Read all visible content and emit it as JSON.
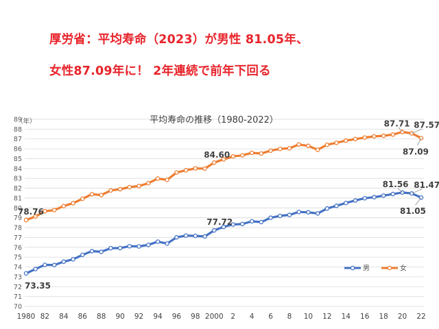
{
  "headline": {
    "line1": "厚労省：平均寿命（2023）が男性 81.05年、",
    "line2": "女性87.09年に！ 2年連続で前年下回る",
    "color": "#e8242b"
  },
  "chart_data": {
    "type": "line",
    "title": "平均寿命の推移（1980-2022）",
    "yunit": "（年）",
    "ylim": [
      70,
      89
    ],
    "y_ticks": [
      70,
      71,
      72,
      73,
      74,
      75,
      76,
      77,
      78,
      79,
      80,
      81,
      82,
      83,
      84,
      85,
      86,
      87,
      88,
      89
    ],
    "x_tick_labels": [
      "1980",
      "82",
      "84",
      "86",
      "88",
      "90",
      "92",
      "94",
      "96",
      "98",
      "2000",
      "2",
      "4",
      "6",
      "8",
      "10",
      "12",
      "14",
      "16",
      "18",
      "20",
      "22"
    ],
    "grid": true,
    "legend_position": "bottom-right",
    "x": [
      1980,
      1981,
      1982,
      1983,
      1984,
      1985,
      1986,
      1987,
      1988,
      1989,
      1990,
      1991,
      1992,
      1993,
      1994,
      1995,
      1996,
      1997,
      1998,
      1999,
      2000,
      2001,
      2002,
      2003,
      2004,
      2005,
      2006,
      2007,
      2008,
      2009,
      2010,
      2011,
      2012,
      2013,
      2014,
      2015,
      2016,
      2017,
      2018,
      2019,
      2020,
      2021,
      2022
    ],
    "series": [
      {
        "name": "男",
        "color": "#4472c4",
        "values": [
          73.35,
          73.79,
          74.22,
          74.2,
          74.54,
          74.78,
          75.23,
          75.61,
          75.54,
          75.91,
          75.92,
          76.11,
          76.09,
          76.25,
          76.57,
          76.38,
          77.01,
          77.19,
          77.16,
          77.1,
          77.72,
          78.07,
          78.32,
          78.36,
          78.64,
          78.56,
          79.0,
          79.19,
          79.29,
          79.59,
          79.55,
          79.44,
          79.94,
          80.21,
          80.5,
          80.75,
          80.98,
          81.09,
          81.25,
          81.41,
          81.56,
          81.47,
          81.05
        ]
      },
      {
        "name": "女",
        "color": "#ed7d31",
        "values": [
          78.76,
          79.13,
          79.66,
          79.78,
          80.18,
          80.48,
          80.93,
          81.39,
          81.3,
          81.77,
          81.9,
          82.11,
          82.22,
          82.51,
          82.98,
          82.85,
          83.59,
          83.82,
          84.01,
          83.99,
          84.6,
          84.93,
          85.23,
          85.33,
          85.59,
          85.52,
          85.81,
          85.99,
          86.05,
          86.44,
          86.3,
          85.9,
          86.41,
          86.61,
          86.83,
          86.99,
          87.14,
          87.26,
          87.32,
          87.45,
          87.71,
          87.57,
          87.09
        ]
      }
    ],
    "annotations": [
      {
        "series": "男",
        "year": 1980,
        "label": "73.35"
      },
      {
        "series": "男",
        "year": 2000,
        "label": "77.72"
      },
      {
        "series": "男",
        "year": 2020,
        "label": "81.56"
      },
      {
        "series": "男",
        "year": 2021,
        "label": "81.47"
      },
      {
        "series": "男",
        "year": 2022,
        "label": "81.05"
      },
      {
        "series": "女",
        "year": 1980,
        "label": "78.76"
      },
      {
        "series": "女",
        "year": 2000,
        "label": "84.60"
      },
      {
        "series": "女",
        "year": 2020,
        "label": "87.71"
      },
      {
        "series": "女",
        "year": 2021,
        "label": "87.57"
      },
      {
        "series": "女",
        "year": 2022,
        "label": "87.09"
      }
    ]
  }
}
